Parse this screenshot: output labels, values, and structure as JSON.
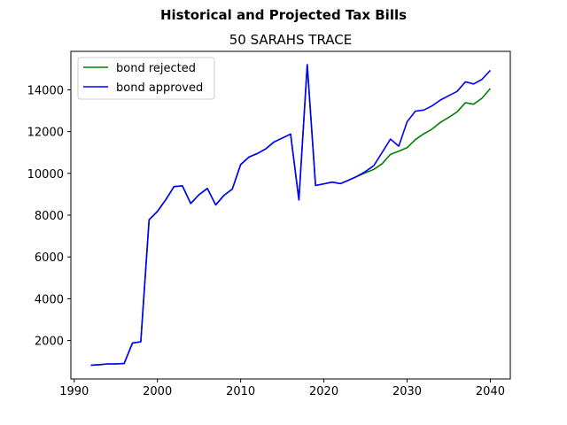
{
  "chart_data": {
    "type": "line",
    "suptitle": "Historical and Projected Tax Bills",
    "title": "50 SARAHS TRACE",
    "xlabel": "",
    "ylabel": "",
    "xlim": [
      1989.6,
      2042.4
    ],
    "ylim": [
      160,
      15840
    ],
    "xticks": [
      1990,
      2000,
      2010,
      2020,
      2030,
      2040
    ],
    "yticks": [
      2000,
      4000,
      6000,
      8000,
      10000,
      12000,
      14000
    ],
    "grid": false,
    "legend_position": "upper-left",
    "x": [
      1992,
      1993,
      1994,
      1995,
      1996,
      1997,
      1998,
      1999,
      2000,
      2001,
      2002,
      2003,
      2004,
      2005,
      2006,
      2007,
      2008,
      2009,
      2010,
      2011,
      2012,
      2013,
      2014,
      2015,
      2016,
      2017,
      2018,
      2019,
      2020,
      2021,
      2022,
      2023,
      2024,
      2025,
      2026,
      2027,
      2028,
      2029,
      2030,
      2031,
      2032,
      2033,
      2034,
      2035,
      2036,
      2037,
      2038,
      2039,
      2040
    ],
    "series": [
      {
        "name": "bond rejected",
        "color": "#008000",
        "values": [
          820,
          840,
          880,
          880,
          900,
          1880,
          1940,
          7780,
          8180,
          8740,
          9370,
          9400,
          8560,
          8980,
          9280,
          8490,
          8950,
          9250,
          10420,
          10780,
          10950,
          11170,
          11500,
          11690,
          11880,
          8730,
          15200,
          9420,
          9500,
          9580,
          9510,
          9680,
          9860,
          10030,
          10190,
          10460,
          10910,
          11060,
          11230,
          11620,
          11890,
          12120,
          12440,
          12680,
          12940,
          13380,
          13310,
          13600,
          14060
        ]
      },
      {
        "name": "bond approved",
        "color": "#0000ff",
        "values": [
          820,
          840,
          880,
          880,
          900,
          1880,
          1940,
          7780,
          8180,
          8740,
          9370,
          9400,
          8560,
          8980,
          9280,
          8490,
          8950,
          9250,
          10420,
          10780,
          10950,
          11170,
          11500,
          11690,
          11880,
          8730,
          15200,
          9420,
          9500,
          9580,
          9510,
          9680,
          9860,
          10090,
          10370,
          11000,
          11640,
          11300,
          12470,
          12980,
          13030,
          13230,
          13510,
          13720,
          13920,
          14380,
          14280,
          14500,
          14930
        ]
      }
    ]
  }
}
